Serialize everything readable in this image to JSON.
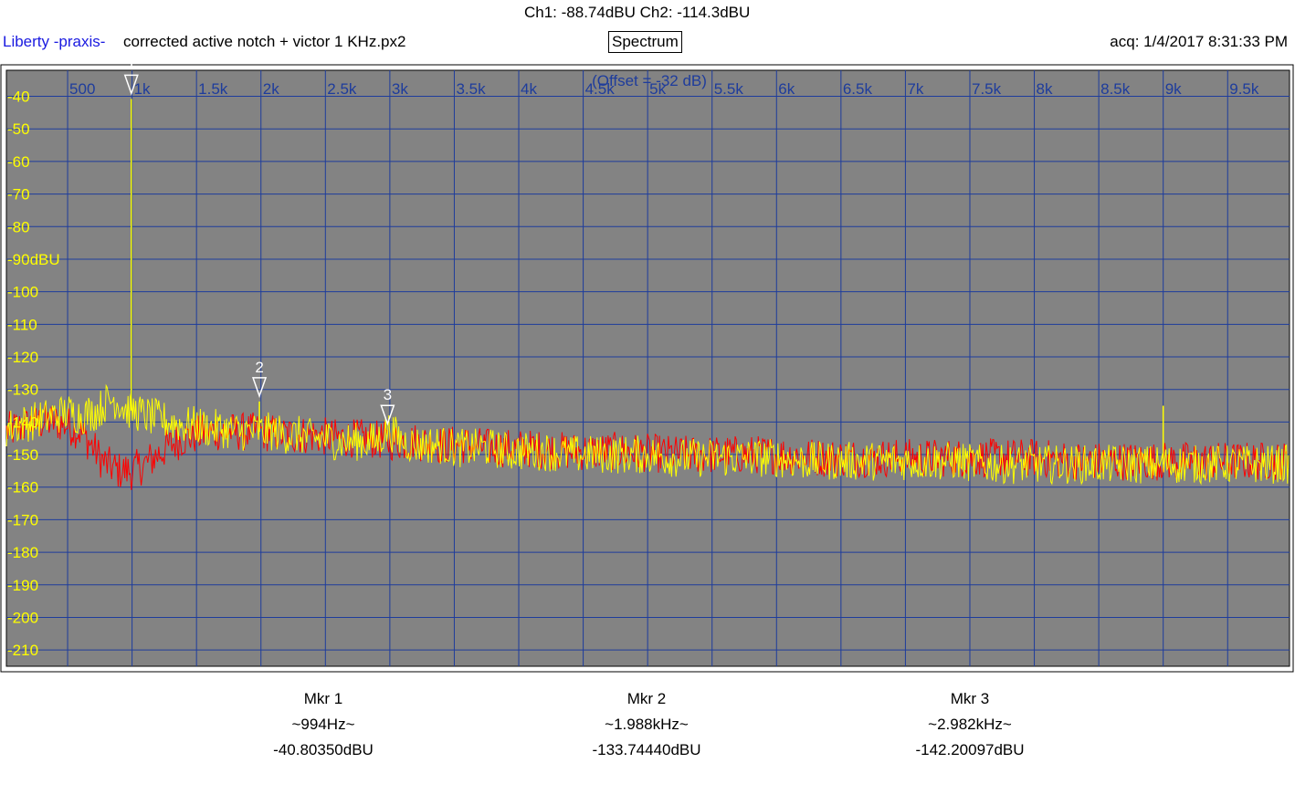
{
  "header": {
    "readout": "Ch1: -88.74dBU  Ch2: -114.3dBU",
    "app_name": "Liberty -praxis-",
    "file_name": "corrected active notch + victor 1 KHz.px2",
    "mode": "Spectrum",
    "acquired": "acq: 1/4/2017 8:31:33 PM"
  },
  "colors": {
    "plot_bg": "#838383",
    "grid": "#1e3c9c",
    "ch1_trace": "#ffff00",
    "ch2_trace": "#ff0000",
    "marker": "#ffffff",
    "tick_x": "#1e3c9c",
    "tick_y": "#ffff00"
  },
  "chart_data": {
    "type": "line",
    "title": "Spectrum",
    "offset_note": "(Offset = -32 dB)",
    "xlabel": "",
    "ylabel": "",
    "x_unit": "Hz",
    "xlim": [
      25,
      9980
    ],
    "ylim": [
      -215,
      -32
    ],
    "x_ticks": [
      {
        "value": 500,
        "label": "500"
      },
      {
        "value": 1000,
        "label": "1k"
      },
      {
        "value": 1500,
        "label": "1.5k"
      },
      {
        "value": 2000,
        "label": "2k"
      },
      {
        "value": 2500,
        "label": "2.5k"
      },
      {
        "value": 3000,
        "label": "3k"
      },
      {
        "value": 3500,
        "label": "3.5k"
      },
      {
        "value": 4000,
        "label": "4k"
      },
      {
        "value": 4500,
        "label": "4.5k"
      },
      {
        "value": 5000,
        "label": "5k"
      },
      {
        "value": 5500,
        "label": "5.5k"
      },
      {
        "value": 6000,
        "label": "6k"
      },
      {
        "value": 6500,
        "label": "6.5k"
      },
      {
        "value": 7000,
        "label": "7k"
      },
      {
        "value": 7500,
        "label": "7.5k"
      },
      {
        "value": 8000,
        "label": "8k"
      },
      {
        "value": 8500,
        "label": "8.5k"
      },
      {
        "value": 9000,
        "label": "9k"
      },
      {
        "value": 9500,
        "label": "9.5k"
      }
    ],
    "y_ticks": [
      {
        "value": -40,
        "label": "-40"
      },
      {
        "value": -50,
        "label": "-50"
      },
      {
        "value": -60,
        "label": "-60"
      },
      {
        "value": -70,
        "label": "-70"
      },
      {
        "value": -80,
        "label": "-80"
      },
      {
        "value": -90,
        "label": "-90dBU"
      },
      {
        "value": -100,
        "label": "-100"
      },
      {
        "value": -110,
        "label": "-110"
      },
      {
        "value": -120,
        "label": "-120"
      },
      {
        "value": -130,
        "label": "-130"
      },
      {
        "value": -140,
        "label": "-140"
      },
      {
        "value": -150,
        "label": "-150"
      },
      {
        "value": -160,
        "label": "-160"
      },
      {
        "value": -170,
        "label": "-170"
      },
      {
        "value": -180,
        "label": "-180"
      },
      {
        "value": -190,
        "label": "-190"
      },
      {
        "value": -200,
        "label": "-200"
      },
      {
        "value": -210,
        "label": "-210"
      }
    ],
    "series": [
      {
        "id": "ch1",
        "color": "#ffff00",
        "x": [
          25,
          100,
          200,
          300,
          400,
          500,
          600,
          700,
          750,
          800,
          850,
          900,
          950,
          994,
          1040,
          1100,
          1200,
          1300,
          1400,
          1500,
          1600,
          1700,
          1800,
          1900,
          1988,
          2100,
          2200,
          2300,
          2400,
          2500,
          2600,
          2700,
          2800,
          2900,
          2982,
          3100,
          3200,
          3300,
          3400,
          3500,
          3600,
          3700,
          3800,
          3900,
          4000,
          4200,
          4400,
          4600,
          4800,
          5000,
          5200,
          5400,
          5600,
          5800,
          6000,
          6200,
          6400,
          6600,
          6800,
          7000,
          7200,
          7400,
          7600,
          7800,
          8000,
          8200,
          8400,
          8600,
          8800,
          8970,
          9000,
          9030,
          9200,
          9400,
          9600,
          9800,
          9980
        ],
        "y": [
          -142,
          -141,
          -140,
          -139,
          -138,
          -137,
          -138,
          -137,
          -136,
          -134,
          -133,
          -134,
          -136,
          -40.8,
          -137,
          -138,
          -139,
          -140,
          -141,
          -141,
          -142,
          -142,
          -143,
          -143,
          -133.7,
          -143,
          -144,
          -144,
          -145,
          -145,
          -146,
          -146,
          -146,
          -146,
          -142.2,
          -146,
          -147,
          -147,
          -147,
          -148,
          -148,
          -148,
          -148,
          -149,
          -149,
          -149,
          -150,
          -150,
          -150,
          -150,
          -151,
          -151,
          -151,
          -151,
          -151,
          -152,
          -152,
          -152,
          -152,
          -152,
          -152,
          -152,
          -153,
          -153,
          -153,
          -153,
          -153,
          -153,
          -153,
          -153,
          -135,
          -153,
          -153,
          -153,
          -153,
          -153,
          -153
        ]
      },
      {
        "id": "ch2",
        "color": "#ff0000",
        "x": [
          25,
          100,
          200,
          300,
          400,
          500,
          600,
          700,
          750,
          800,
          850,
          900,
          950,
          1000,
          1050,
          1100,
          1200,
          1300,
          1400,
          1500,
          1600,
          1700,
          1800,
          1900,
          2000,
          2200,
          2400,
          2600,
          2800,
          3000,
          3200,
          3400,
          3600,
          3800,
          4000,
          4400,
          4800,
          5200,
          5600,
          6000,
          6400,
          6800,
          7200,
          7600,
          8000,
          8400,
          8800,
          9200,
          9600,
          9980
        ],
        "y": [
          -143,
          -142,
          -141,
          -140,
          -140,
          -141,
          -143,
          -148,
          -151,
          -153,
          -154,
          -155,
          -155,
          -155,
          -154,
          -153,
          -150,
          -147,
          -145,
          -144,
          -143,
          -143,
          -143,
          -143,
          -143,
          -144,
          -144,
          -145,
          -145,
          -146,
          -146,
          -147,
          -147,
          -148,
          -148,
          -149,
          -149,
          -150,
          -150,
          -150,
          -151,
          -151,
          -151,
          -151,
          -151,
          -152,
          -152,
          -152,
          -152,
          -152
        ]
      }
    ],
    "markers": [
      {
        "label": "1",
        "x": 994,
        "y": -40.8
      },
      {
        "label": "2",
        "x": 1988,
        "y": -133.7
      },
      {
        "label": "3",
        "x": 2982,
        "y": -142.2
      }
    ]
  },
  "marker_readouts": [
    {
      "title": "Mkr 1",
      "freq": "~994Hz~",
      "level": "-40.80350dBU"
    },
    {
      "title": "Mkr 2",
      "freq": "~1.988kHz~",
      "level": "-133.74440dBU"
    },
    {
      "title": "Mkr 3",
      "freq": "~2.982kHz~",
      "level": "-142.20097dBU"
    }
  ]
}
